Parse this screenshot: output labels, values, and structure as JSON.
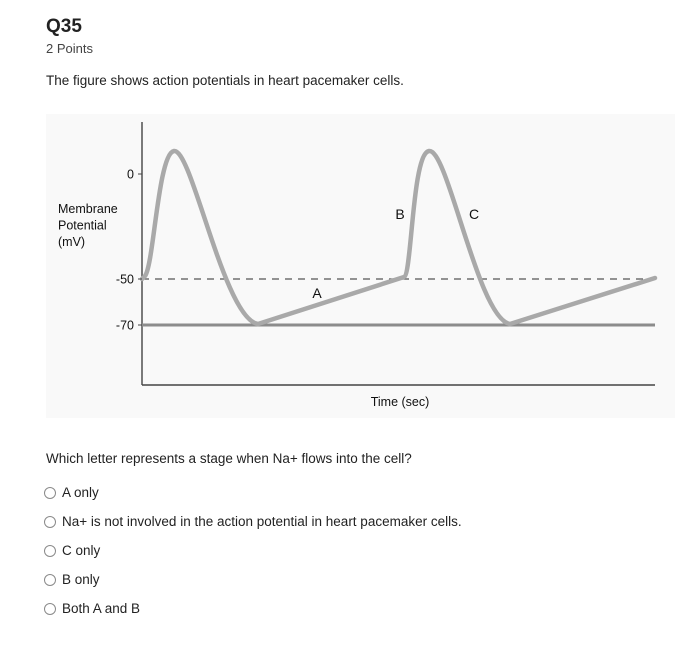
{
  "question": {
    "title": "Q35",
    "points": "2 Points",
    "intro": "The figure shows action potentials in heart pacemaker cells.",
    "prompt": "Which letter represents a stage when Na+ flows into the cell?"
  },
  "figure": {
    "ylabel_lines": [
      "Membrane",
      "Potential",
      "(mV)"
    ],
    "xlabel": "Time (sec)",
    "yticks": [
      "0",
      "-50",
      "-70"
    ],
    "point_labels": [
      "A",
      "B",
      "C"
    ],
    "colors": {
      "curve": "#a9a9a9",
      "baseline": "#8c8c8c",
      "threshold_dash": "#555555",
      "axis": "#444444"
    }
  },
  "chart_data": {
    "type": "line",
    "title": "",
    "xlabel": "Time (sec)",
    "ylabel": "Membrane Potential (mV)",
    "ylim": [
      -70,
      0
    ],
    "yticks": [
      0,
      -50,
      -70
    ],
    "series": [
      {
        "x": [
          0,
          1,
          2,
          3,
          4,
          5,
          6,
          7,
          8
        ],
        "y": [
          -50,
          5,
          -70,
          -60,
          -50,
          5,
          -70,
          -60,
          -50
        ]
      }
    ],
    "reference_lines": [
      {
        "y": -50,
        "style": "dashed"
      },
      {
        "y": -70,
        "style": "solid"
      }
    ],
    "annotations": [
      {
        "label": "A",
        "x": 3
      },
      {
        "label": "B",
        "x": 4
      },
      {
        "label": "C",
        "x": 5.5
      }
    ],
    "grid": false,
    "legend": "none"
  },
  "options": [
    {
      "label": "A only"
    },
    {
      "label": "Na+ is not involved in the action potential in heart pacemaker cells."
    },
    {
      "label": "C only"
    },
    {
      "label": "B only"
    },
    {
      "label": "Both A and B"
    }
  ]
}
